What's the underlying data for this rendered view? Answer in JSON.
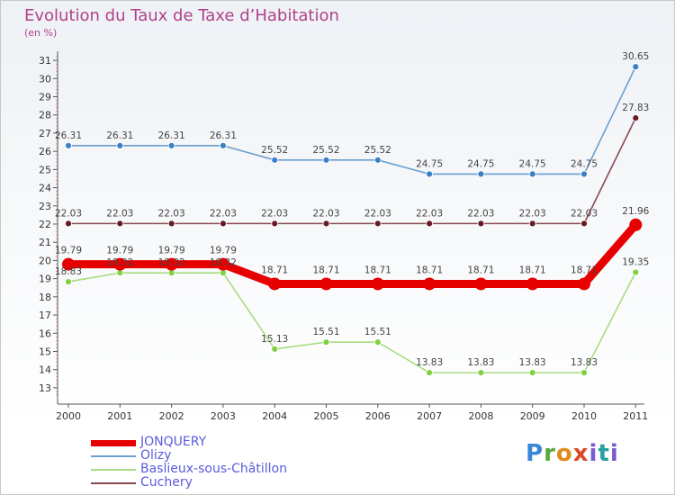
{
  "chart_data": {
    "type": "line",
    "title": "Evolution du Taux de Taxe d’Habitation",
    "subtitle": "(en %)",
    "x": [
      "2000",
      "2001",
      "2002",
      "2003",
      "2004",
      "2005",
      "2006",
      "2007",
      "2008",
      "2009",
      "2010",
      "2011"
    ],
    "yticks": [
      13,
      14,
      15,
      16,
      17,
      18,
      19,
      20,
      21,
      22,
      23,
      24,
      25,
      26,
      27,
      28,
      29,
      30,
      31
    ],
    "ylim": [
      12.5,
      31.3
    ],
    "grid": false,
    "legend_position": "bottom-left",
    "series": [
      {
        "name": "Olizy",
        "color": "#6a9fd0",
        "marker": "#3a80c4",
        "values": [
          26.31,
          26.31,
          26.31,
          26.31,
          25.52,
          25.52,
          25.52,
          24.75,
          24.75,
          24.75,
          24.75,
          30.65
        ],
        "labels": [
          "26.31",
          "26.31",
          "26.31",
          "26.31",
          "25.52",
          "25.52",
          "25.52",
          "24.75",
          "24.75",
          "24.75",
          "24.75",
          "30.65"
        ]
      },
      {
        "name": "Cuchery",
        "color": "#8a4a52",
        "marker": "#6a1a22",
        "values": [
          22.03,
          22.03,
          22.03,
          22.03,
          22.03,
          22.03,
          22.03,
          22.03,
          22.03,
          22.03,
          22.03,
          27.83
        ],
        "labels": [
          "22.03",
          "22.03",
          "22.03",
          "22.03",
          "22.03",
          "22.03",
          "22.03",
          "22.03",
          "22.03",
          "22.03",
          "22.03",
          "27.83"
        ]
      },
      {
        "name": "Baslieux-sous-Châtillon",
        "color": "#a8dc80",
        "marker": "#80d040",
        "values": [
          18.83,
          19.32,
          19.32,
          19.32,
          15.13,
          15.51,
          15.51,
          13.83,
          13.83,
          13.83,
          13.83,
          19.35
        ],
        "labels": [
          "18.83",
          "19.32",
          "19.32",
          "19.32",
          "15.13",
          "15.51",
          "15.51",
          "13.83",
          "13.83",
          "13.83",
          "13.83",
          "19.35"
        ]
      },
      {
        "name": "JONQUERY",
        "color": "#e60000",
        "marker": "#e60000",
        "values": [
          19.79,
          19.79,
          19.79,
          19.79,
          18.71,
          18.71,
          18.71,
          18.71,
          18.71,
          18.71,
          18.71,
          21.96
        ],
        "labels": [
          "19.79",
          "19.79",
          "19.79",
          "19.79",
          "18.71",
          "18.71",
          "18.71",
          "18.71",
          "18.71",
          "18.71",
          "18.71",
          "21.96"
        ]
      }
    ],
    "legend": [
      "JONQUERY",
      "Olizy",
      "Baslieux-sous-Châtillon",
      "Cuchery"
    ]
  },
  "logo": {
    "p": "P",
    "r": "r",
    "o": "o",
    "x": "x",
    "i": "i",
    "t": "t",
    "i2": "i"
  }
}
